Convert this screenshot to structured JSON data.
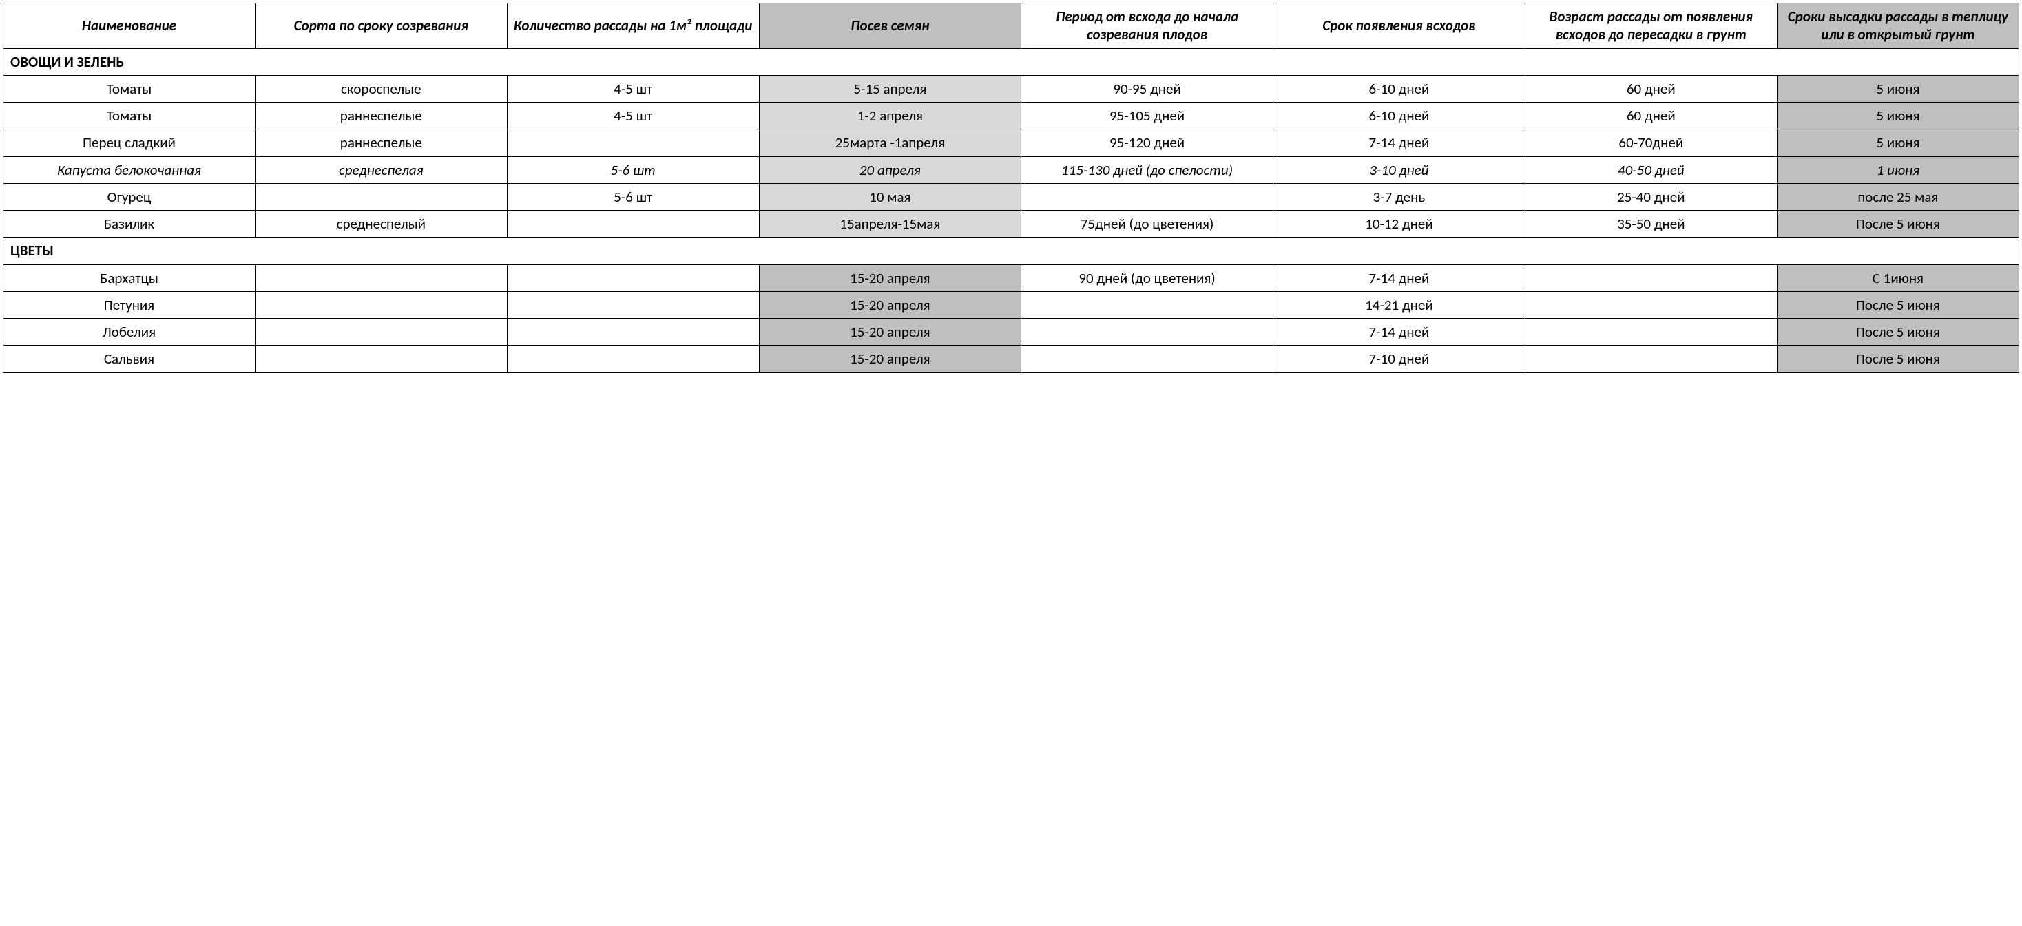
{
  "table": {
    "columns": [
      {
        "label": "Наименование",
        "shaded": false
      },
      {
        "label": "Сорта по сроку созревания",
        "shaded": false
      },
      {
        "label": "Количество рассады на 1м² площади",
        "shaded": false
      },
      {
        "label": "Посев семян",
        "shaded": true
      },
      {
        "label": "Период от всхода до начала созревания плодов",
        "shaded": false
      },
      {
        "label": "Срок появления всходов",
        "shaded": false
      },
      {
        "label": "Возраст рассады от появления всходов до пересадки в грунт",
        "shaded": false
      },
      {
        "label": "Сроки высадки рассады в теплицу или в открытый грунт",
        "shaded": true
      }
    ],
    "sections": [
      {
        "title": "ОВОЩИ И ЗЕЛЕНЬ",
        "rows": [
          {
            "italic": false,
            "cells": [
              "Томаты",
              "скороспелые",
              "4-5 шт",
              "5-15 апреля",
              "90-95 дней",
              "6-10 дней",
              "60 дней",
              "5 июня"
            ],
            "col3_shade": "light",
            "col7_shade": "mid"
          },
          {
            "italic": false,
            "cells": [
              "Томаты",
              "раннеспелые",
              "4-5 шт",
              "1-2 апреля",
              "95-105 дней",
              "6-10 дней",
              "60 дней",
              "5 июня"
            ],
            "col3_shade": "light",
            "col7_shade": "mid"
          },
          {
            "italic": false,
            "cells": [
              "Перец сладкий",
              "раннеспелые",
              "",
              "25марта -1апреля",
              "95-120 дней",
              "7-14 дней",
              "60-70дней",
              "5 июня"
            ],
            "col3_shade": "light",
            "col7_shade": "mid"
          },
          {
            "italic": true,
            "cells": [
              "Капуста белокочанная",
              "среднеспелая",
              "5-6 шт",
              "20 апреля",
              "115-130 дней (до спелости)",
              "3-10 дней",
              "40-50 дней",
              "1 июня"
            ],
            "col3_shade": "light",
            "col7_shade": "mid"
          },
          {
            "italic": false,
            "cells": [
              "Огурец",
              "",
              "5-6 шт",
              "10 мая",
              "",
              "3-7  день",
              "25-40 дней",
              "после 25 мая"
            ],
            "col3_shade": "light",
            "col7_shade": "mid"
          },
          {
            "italic": false,
            "cells": [
              "Базилик",
              "среднеспелый",
              "",
              "15апреля-15мая",
              "75дней (до цветения)",
              "10-12 дней",
              "35-50 дней",
              "После 5 июня"
            ],
            "col3_shade": "light",
            "col7_shade": "mid"
          }
        ]
      },
      {
        "title": "ЦВЕТЫ",
        "rows": [
          {
            "italic": false,
            "cells": [
              "Бархатцы",
              "",
              "",
              "15-20 апреля",
              "90 дней (до цветения)",
              "7-14 дней",
              "",
              "С 1июня"
            ],
            "col3_shade": "mid",
            "col7_shade": "mid"
          },
          {
            "italic": false,
            "cells": [
              "Петуния",
              "",
              "",
              "15-20 апреля",
              "",
              "14-21 дней",
              "",
              "После 5 июня"
            ],
            "col3_shade": "mid",
            "col7_shade": "mid"
          },
          {
            "italic": false,
            "cells": [
              "Лобелия",
              "",
              "",
              "15-20 апреля",
              "",
              "7-14 дней",
              "",
              "После 5 июня"
            ],
            "col3_shade": "mid",
            "col7_shade": "mid"
          },
          {
            "italic": false,
            "cells": [
              "Сальвия",
              "",
              "",
              "15-20 апреля",
              "",
              "7-10 дней",
              "",
              "После 5 июня"
            ],
            "col3_shade": "mid",
            "col7_shade": "mid"
          }
        ]
      }
    ],
    "colors": {
      "border": "#000000",
      "bg": "#ffffff",
      "shade_light": "#d9d9d9",
      "shade_mid": "#bfbfbf"
    },
    "font": {
      "family": "Calibri",
      "size_pt": 16,
      "header_style": "bold-italic"
    }
  }
}
